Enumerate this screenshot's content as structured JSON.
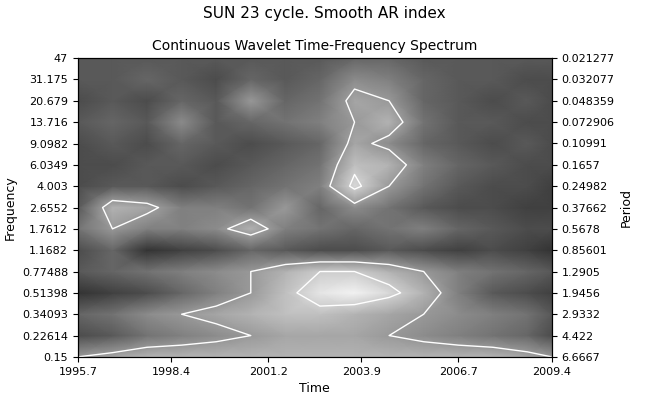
{
  "chart_data": {
    "type": "heatmap",
    "title": "SUN 23 cycle. Smooth AR index",
    "subtitle": "Continuous Wavelet Time-Frequency Spectrum",
    "x_label": "Time",
    "y_label": "Frequency",
    "y2_label": "Period",
    "log": "y",
    "xlim": [
      1995.7,
      2009.4
    ],
    "xticks": [
      1995.7,
      1998.4,
      2001.2,
      2003.9,
      2006.7,
      2009.4
    ],
    "ylim": [
      0.15,
      47
    ],
    "yticks": [
      0.15,
      0.22614,
      0.34093,
      0.51398,
      0.77488,
      1.1682,
      1.7612,
      2.6552,
      4.003,
      6.0349,
      9.0982,
      13.716,
      20.679,
      31.175,
      47
    ],
    "y2lim": [
      6.6667,
      0.021277
    ],
    "y2ticks": [
      6.6667,
      4.422,
      2.9332,
      1.9456,
      1.2905,
      0.85601,
      0.5678,
      0.37662,
      0.24982,
      0.1657,
      0.10991,
      0.072906,
      0.048359,
      0.032077,
      0.021277
    ],
    "x": [
      1995.7,
      1996.7,
      1997.7,
      1998.7,
      1999.7,
      2000.7,
      2001.7,
      2002.7,
      2003.7,
      2004.7,
      2005.7,
      2006.7,
      2007.7,
      2008.7,
      2009.4
    ],
    "y": [
      0.15,
      0.22614,
      0.34093,
      0.51398,
      0.77488,
      1.1682,
      1.7612,
      2.6552,
      4.003,
      6.0349,
      9.0982,
      13.716,
      20.679,
      31.175,
      47
    ],
    "values": [
      [
        0.6,
        0.65,
        0.7,
        0.7,
        0.7,
        0.7,
        0.7,
        0.7,
        0.7,
        0.7,
        0.7,
        0.7,
        0.7,
        0.65,
        0.6
      ],
      [
        0.3,
        0.35,
        0.45,
        0.5,
        0.55,
        0.6,
        0.65,
        0.65,
        0.65,
        0.6,
        0.55,
        0.5,
        0.45,
        0.4,
        0.3
      ],
      [
        0.4,
        0.45,
        0.55,
        0.6,
        0.65,
        0.7,
        0.75,
        0.75,
        0.7,
        0.65,
        0.6,
        0.55,
        0.5,
        0.45,
        0.35
      ],
      [
        0.2,
        0.25,
        0.3,
        0.4,
        0.5,
        0.6,
        0.75,
        0.9,
        0.95,
        0.85,
        0.7,
        0.5,
        0.35,
        0.3,
        0.25
      ],
      [
        0.35,
        0.4,
        0.45,
        0.5,
        0.55,
        0.6,
        0.7,
        0.8,
        0.8,
        0.7,
        0.6,
        0.5,
        0.45,
        0.4,
        0.35
      ],
      [
        0.3,
        0.4,
        0.2,
        0.25,
        0.3,
        0.4,
        0.35,
        0.3,
        0.3,
        0.35,
        0.3,
        0.25,
        0.3,
        0.25,
        0.2
      ],
      [
        0.45,
        0.6,
        0.5,
        0.5,
        0.55,
        0.7,
        0.5,
        0.45,
        0.4,
        0.45,
        0.5,
        0.4,
        0.35,
        0.3,
        0.3
      ],
      [
        0.35,
        0.7,
        0.65,
        0.5,
        0.5,
        0.45,
        0.6,
        0.4,
        0.55,
        0.45,
        0.35,
        0.3,
        0.3,
        0.25,
        0.25
      ],
      [
        0.3,
        0.35,
        0.35,
        0.3,
        0.35,
        0.4,
        0.45,
        0.5,
        0.85,
        0.6,
        0.45,
        0.35,
        0.3,
        0.3,
        0.25
      ],
      [
        0.3,
        0.3,
        0.35,
        0.35,
        0.3,
        0.35,
        0.4,
        0.45,
        0.75,
        0.7,
        0.5,
        0.4,
        0.35,
        0.3,
        0.3
      ],
      [
        0.3,
        0.35,
        0.3,
        0.4,
        0.35,
        0.3,
        0.35,
        0.4,
        0.65,
        0.55,
        0.4,
        0.35,
        0.3,
        0.35,
        0.3
      ],
      [
        0.35,
        0.4,
        0.35,
        0.55,
        0.35,
        0.4,
        0.45,
        0.5,
        0.6,
        0.7,
        0.45,
        0.35,
        0.35,
        0.3,
        0.3
      ],
      [
        0.3,
        0.35,
        0.3,
        0.4,
        0.35,
        0.6,
        0.4,
        0.45,
        0.65,
        0.6,
        0.4,
        0.35,
        0.3,
        0.35,
        0.3
      ],
      [
        0.35,
        0.35,
        0.4,
        0.35,
        0.3,
        0.4,
        0.35,
        0.4,
        0.55,
        0.5,
        0.4,
        0.35,
        0.35,
        0.3,
        0.3
      ],
      [
        0.35,
        0.35,
        0.35,
        0.35,
        0.35,
        0.35,
        0.35,
        0.35,
        0.4,
        0.4,
        0.35,
        0.35,
        0.35,
        0.35,
        0.35
      ]
    ],
    "zlim": [
      0,
      1
    ],
    "contour_levels": [
      0.6,
      0.8
    ]
  }
}
